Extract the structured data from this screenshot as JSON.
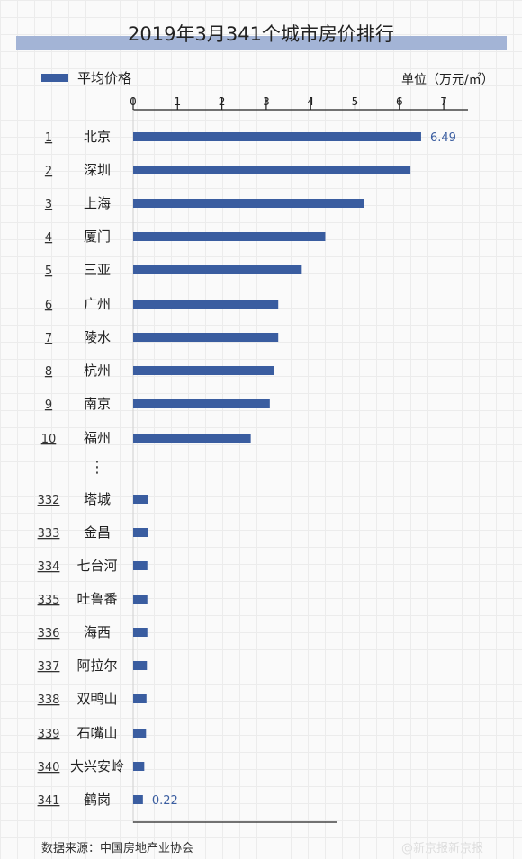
{
  "title": "2019年3月341个城市房价排行",
  "legend": {
    "label": "平均价格",
    "color": "#3a5da0"
  },
  "unit": "单位（万元/㎡）",
  "source": "数据来源：中国房地产业协会",
  "watermark": "@新京报新京报",
  "chart_data": {
    "type": "bar",
    "orientation": "horizontal",
    "xlim": [
      0,
      7
    ],
    "x_ticks": [
      "0",
      "1",
      "2",
      "3",
      "4",
      "5",
      "6",
      "7"
    ],
    "ellipsis": "⋮",
    "series": [
      {
        "name": "平均价格",
        "data": [
          {
            "rank": "1",
            "city": "北京",
            "value": 6.49,
            "label": "6.49"
          },
          {
            "rank": "2",
            "city": "深圳",
            "value": 6.25
          },
          {
            "rank": "3",
            "city": "上海",
            "value": 5.2
          },
          {
            "rank": "4",
            "city": "厦门",
            "value": 4.33
          },
          {
            "rank": "5",
            "city": "三亚",
            "value": 3.8
          },
          {
            "rank": "6",
            "city": "广州",
            "value": 3.27
          },
          {
            "rank": "7",
            "city": "陵水",
            "value": 3.27
          },
          {
            "rank": "8",
            "city": "杭州",
            "value": 3.17
          },
          {
            "rank": "9",
            "city": "南京",
            "value": 3.08
          },
          {
            "rank": "10",
            "city": "福州",
            "value": 2.65
          },
          {
            "rank": "332",
            "city": "塔城",
            "value": 0.33
          },
          {
            "rank": "333",
            "city": "金昌",
            "value": 0.33
          },
          {
            "rank": "334",
            "city": "七台河",
            "value": 0.32
          },
          {
            "rank": "335",
            "city": "吐鲁番",
            "value": 0.32
          },
          {
            "rank": "336",
            "city": "海西",
            "value": 0.32
          },
          {
            "rank": "337",
            "city": "阿拉尔",
            "value": 0.31
          },
          {
            "rank": "338",
            "city": "双鸭山",
            "value": 0.3
          },
          {
            "rank": "339",
            "city": "石嘴山",
            "value": 0.29
          },
          {
            "rank": "340",
            "city": "大兴安岭",
            "value": 0.25
          },
          {
            "rank": "341",
            "city": "鹤岗",
            "value": 0.22,
            "label": "0.22"
          }
        ]
      }
    ]
  }
}
